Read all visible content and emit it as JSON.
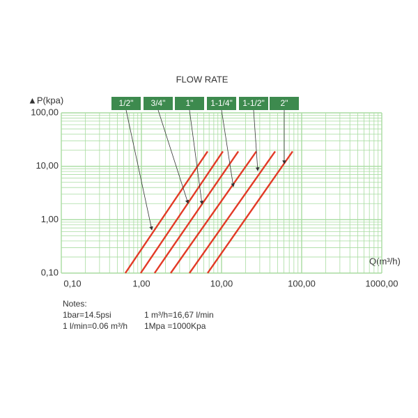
{
  "chart_data": {
    "type": "line",
    "title": "FLOW RATE",
    "y_label": "▲P(kpa)",
    "x_label": "Q(m³/h)",
    "log_x": true,
    "log_y": true,
    "grid": true,
    "grid_color": "#a8dca0",
    "xlim": [
      0.1,
      1000
    ],
    "ylim": [
      0.1,
      100
    ],
    "xticks": [
      {
        "value": 0.1,
        "label": "0,10"
      },
      {
        "value": 1,
        "label": "1,00"
      },
      {
        "value": 10,
        "label": "10,00"
      },
      {
        "value": 100,
        "label": "100,00"
      },
      {
        "value": 1000,
        "label": "1000,00"
      }
    ],
    "yticks": [
      {
        "value": 0.1,
        "label": "0,10"
      },
      {
        "value": 1,
        "label": "1,00"
      },
      {
        "value": 10,
        "label": "10,00"
      },
      {
        "value": 100,
        "label": "100,00"
      }
    ],
    "xminorticks": [
      0.2,
      0.3,
      0.4,
      0.5,
      0.6,
      0.7,
      0.8,
      0.9,
      2,
      3,
      4,
      5,
      6,
      7,
      8,
      9,
      20,
      30,
      40,
      50,
      60,
      70,
      80,
      90,
      200,
      300,
      400,
      500,
      600,
      700,
      800,
      900
    ],
    "yminorticks": [
      0.2,
      0.3,
      0.4,
      0.5,
      0.6,
      0.7,
      0.8,
      0.9,
      2,
      3,
      4,
      5,
      6,
      7,
      8,
      9,
      20,
      30,
      40,
      50,
      60,
      70,
      80,
      90
    ],
    "legend_color": "#3d8a4e",
    "series": [
      {
        "name": "1/2\"",
        "color": "#e23a26",
        "x": [
          0.63,
          6.7
        ],
        "values": [
          0.1,
          19
        ]
      },
      {
        "name": "3/4\"",
        "color": "#e23a26",
        "x": [
          0.98,
          10.4
        ],
        "values": [
          0.1,
          19
        ]
      },
      {
        "name": "1\"",
        "color": "#e23a26",
        "x": [
          1.46,
          16.2
        ],
        "values": [
          0.1,
          19
        ]
      },
      {
        "name": "1-1/4\"",
        "color": "#e23a26",
        "x": [
          2.32,
          27.2
        ],
        "values": [
          0.1,
          19
        ]
      },
      {
        "name": "1-1/2\"",
        "color": "#e23a26",
        "x": [
          3.98,
          46.7
        ],
        "values": [
          0.1,
          19
        ]
      },
      {
        "name": "2\"",
        "color": "#e23a26",
        "x": [
          6.7,
          77.1
        ],
        "values": [
          0.1,
          19
        ]
      }
    ],
    "notes_title": "Notes:",
    "notes": [
      "1bar=14.5psi",
      "1 m³/h=16,67 l/min",
      "1 l/min=0.06 m³/h",
      "1Mpa =1000Kpa"
    ]
  }
}
